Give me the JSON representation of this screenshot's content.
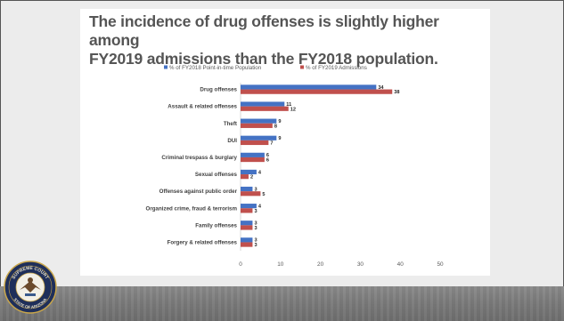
{
  "slide": {
    "title_line1": "The incidence of drug offenses is slightly higher among",
    "title_line2": "FY2019 admissions than the FY2018 population."
  },
  "seal": {
    "icon": "supreme-court-seal-icon",
    "text_top": "SUPREME COURT",
    "text_bottom": "STATE OF ARIZONA"
  },
  "colors": {
    "series1": "#4472c4",
    "series2": "#c0504d"
  },
  "chart_data": {
    "type": "bar",
    "orientation": "horizontal",
    "categories": [
      "Drug offenses",
      "Assault & related offenses",
      "Theft",
      "DUI",
      "Criminal trespass & burglary",
      "Sexual offenses",
      "Offenses against public order",
      "Organized crime, fraud & terrorism",
      "Family offenses",
      "Forgery & related offenses"
    ],
    "series": [
      {
        "name": "% of FY2018 Point-in-time Population",
        "values": [
          34,
          11,
          9,
          9,
          6,
          4,
          3,
          4,
          3,
          3
        ]
      },
      {
        "name": "% of FY2019 Admissions",
        "values": [
          38,
          12,
          8,
          7,
          6,
          2,
          5,
          3,
          3,
          3
        ]
      }
    ],
    "xlim": [
      0,
      50
    ],
    "xticks": [
      "0",
      "10",
      "20",
      "30",
      "40",
      "50"
    ],
    "legend": "top",
    "grid": false
  }
}
